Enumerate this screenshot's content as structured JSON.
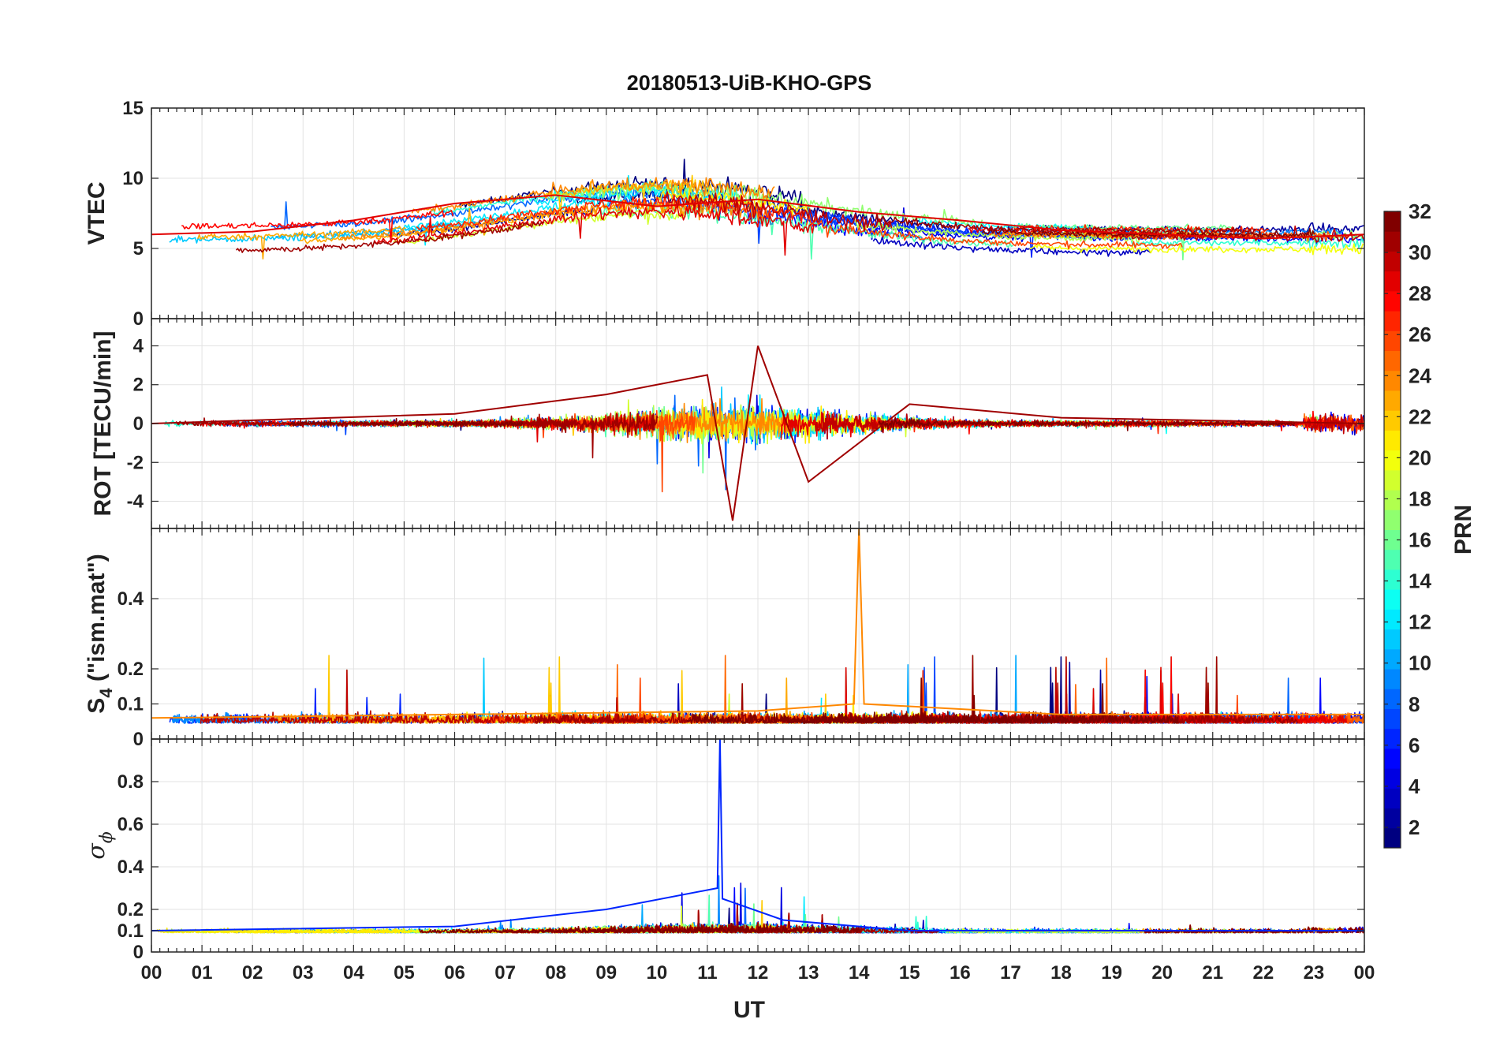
{
  "chart_data": {
    "type": "line",
    "title": "20180513-UiB-KHO-GPS",
    "xlabel": "UT",
    "x_ticks": [
      "00",
      "01",
      "02",
      "03",
      "04",
      "05",
      "06",
      "07",
      "08",
      "09",
      "10",
      "11",
      "12",
      "13",
      "14",
      "15",
      "16",
      "17",
      "18",
      "19",
      "20",
      "21",
      "22",
      "23",
      "00"
    ],
    "xlim_hours": [
      0,
      24
    ],
    "grid": true,
    "panels": [
      {
        "id": "vtec",
        "ylabel": "VTEC",
        "ylim": [
          0,
          15
        ],
        "yticks": [
          0,
          5,
          10,
          15
        ],
        "ytick_labels": [
          "0",
          "5",
          "10",
          "15"
        ],
        "series_sample": {
          "PRN": 29,
          "x_hours": [
            0,
            2,
            4,
            6,
            8,
            10,
            12,
            14,
            16,
            18,
            20,
            22,
            24
          ],
          "y": [
            6.0,
            6.2,
            7.0,
            8.2,
            8.8,
            8.0,
            8.5,
            7.6,
            7.0,
            6.3,
            6.0,
            5.7,
            6.0
          ]
        }
      },
      {
        "id": "rot",
        "ylabel": "ROT [TECU/min]",
        "ylim": [
          -5.4,
          5.4
        ],
        "yticks": [
          -4,
          -2,
          0,
          2,
          4
        ],
        "ytick_labels": [
          "-4",
          "-2",
          "0",
          "2",
          "4"
        ],
        "series_sample": {
          "PRN": 31,
          "x_hours": [
            0,
            6,
            9,
            11,
            11.5,
            12,
            13,
            15,
            18,
            24
          ],
          "y": [
            0,
            0.5,
            1.5,
            2.5,
            -5,
            4,
            -3,
            1,
            0.3,
            0
          ]
        }
      },
      {
        "id": "s4",
        "ylabel": "S",
        "ylabel_subscript": "4",
        "ylabel_suffix": " (\"ism.mat\")",
        "ylim": [
          0,
          0.6
        ],
        "yticks": [
          0,
          0.1,
          0.2,
          0.4
        ],
        "ytick_labels": [
          "0",
          "0.1",
          "0.2",
          "0.4"
        ],
        "series_sample": {
          "PRN": 24,
          "x_hours": [
            0,
            6,
            12,
            13.9,
            14,
            14.1,
            18,
            24
          ],
          "y": [
            0.06,
            0.07,
            0.08,
            0.1,
            0.6,
            0.1,
            0.07,
            0.07
          ]
        }
      },
      {
        "id": "sigma",
        "ylabel": "σ",
        "ylabel_subscript": "ϕ",
        "ylim": [
          0,
          1
        ],
        "yticks": [
          0,
          0.1,
          0.2,
          0.4,
          0.6,
          0.8
        ],
        "ytick_labels": [
          "0",
          "0.1",
          "0.2",
          "0.4",
          "0.6",
          "0.8"
        ],
        "series_sample": {
          "PRN": 6,
          "x_hours": [
            0,
            6,
            9,
            11.2,
            11.25,
            11.3,
            12.5,
            15,
            24
          ],
          "y": [
            0.1,
            0.12,
            0.2,
            0.3,
            1.0,
            0.25,
            0.15,
            0.1,
            0.1
          ]
        }
      }
    ],
    "colorbar": {
      "label": "PRN",
      "range": [
        1,
        32
      ],
      "ticks": [
        2,
        4,
        6,
        8,
        10,
        12,
        14,
        16,
        18,
        20,
        22,
        24,
        26,
        28,
        30,
        32
      ],
      "colormap": "jet",
      "levels": 32
    },
    "n_series": 32,
    "series_description": "one trace per GPS PRN 1-32, colored by PRN (jet colormap)"
  }
}
